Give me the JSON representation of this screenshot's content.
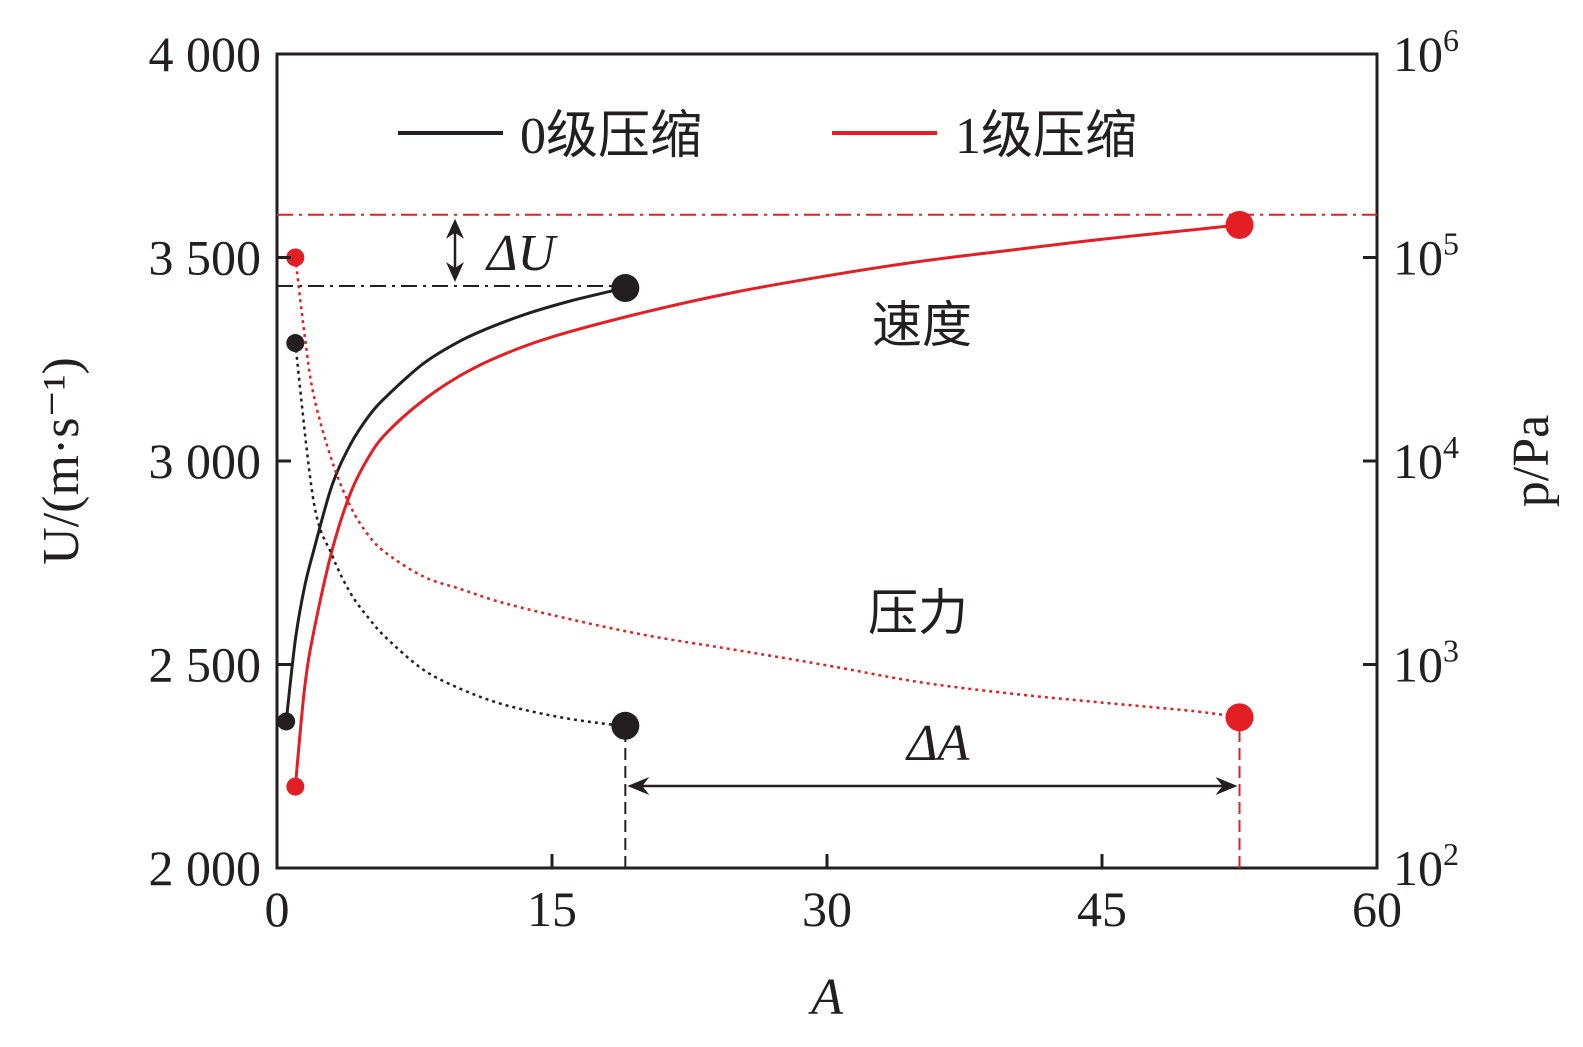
{
  "chart_data": {
    "type": "line",
    "xlabel": "A",
    "ylabel_left": "U/(m·s⁻¹)",
    "ylabel_right": "p/Pa",
    "xlim": [
      0,
      60
    ],
    "ylim_left": [
      2000,
      4000
    ],
    "ylim_right_log10": [
      2,
      6
    ],
    "right_axis_scale": "log",
    "x_ticks": [
      "0",
      "15",
      "30",
      "45",
      "60"
    ],
    "x_tick_values": [
      0,
      15,
      30,
      45,
      60
    ],
    "y_left_ticks": [
      "2 000",
      "2 500",
      "3 000",
      "3 500",
      "4 000"
    ],
    "y_left_tick_values": [
      2000,
      2500,
      3000,
      3500,
      4000
    ],
    "y_right_ticks": [
      {
        "base": "10",
        "exp": "2",
        "log": 2
      },
      {
        "base": "10",
        "exp": "3",
        "log": 3
      },
      {
        "base": "10",
        "exp": "4",
        "log": 4
      },
      {
        "base": "10",
        "exp": "5",
        "log": 5
      },
      {
        "base": "10",
        "exp": "6",
        "log": 6
      }
    ],
    "legend": {
      "placement": "top",
      "entries": [
        {
          "label": "0级压缩",
          "color": "#231f20"
        },
        {
          "label": "1级压缩",
          "color": "#e31e24"
        }
      ]
    },
    "series": [
      {
        "name": "0级压缩",
        "quantity": "速度",
        "axis": "left",
        "color": "#231f20",
        "style": "solid",
        "x": [
          0.5,
          1,
          1.5,
          2,
          3,
          4,
          5,
          6,
          8,
          10,
          12,
          14,
          16,
          18,
          19
        ],
        "y": [
          2360,
          2560,
          2690,
          2780,
          2940,
          3040,
          3110,
          3160,
          3240,
          3295,
          3335,
          3367,
          3393,
          3415,
          3425
        ],
        "endpoints": [
          {
            "x": 0.5,
            "y": 2360
          },
          {
            "x": 19,
            "y": 3425
          }
        ]
      },
      {
        "name": "1级压缩",
        "quantity": "速度",
        "axis": "left",
        "color": "#e31e24",
        "style": "solid",
        "x": [
          1,
          1.5,
          2,
          3,
          4,
          5,
          6,
          8,
          10,
          12,
          15,
          20,
          25,
          30,
          35,
          40,
          45,
          50,
          52.5
        ],
        "y": [
          2200,
          2440,
          2580,
          2780,
          2920,
          3010,
          3070,
          3150,
          3210,
          3255,
          3305,
          3365,
          3415,
          3455,
          3490,
          3518,
          3545,
          3568,
          3580
        ],
        "endpoints": [
          {
            "x": 1,
            "y": 2200
          },
          {
            "x": 52.5,
            "y": 3580
          }
        ]
      },
      {
        "name": "0级压缩",
        "quantity": "压力",
        "axis": "right",
        "color": "#231f20",
        "style": "dotted",
        "x": [
          1,
          2,
          3,
          4,
          5,
          6,
          8,
          10,
          12,
          14,
          16,
          18,
          19
        ],
        "y": [
          38000,
          6300,
          3450,
          2250,
          1690,
          1340,
          940,
          760,
          650,
          585,
          540,
          510,
          500
        ],
        "endpoints": [
          {
            "x": 1,
            "y": 38000
          },
          {
            "x": 19,
            "y": 500
          }
        ]
      },
      {
        "name": "1级压缩",
        "quantity": "压力",
        "axis": "right",
        "color": "#e31e24",
        "style": "dotted",
        "x": [
          1,
          1.5,
          2,
          3,
          4,
          5,
          6,
          8,
          10,
          12,
          15,
          20,
          25,
          30,
          35,
          40,
          45,
          50,
          52.5
        ],
        "y": [
          100000,
          42000,
          21000,
          10000,
          6000,
          4300,
          3500,
          2700,
          2350,
          2050,
          1750,
          1400,
          1180,
          990,
          820,
          720,
          650,
          590,
          550
        ],
        "endpoints": [
          {
            "x": 1,
            "y": 100000
          },
          {
            "x": 52.5,
            "y": 550
          }
        ]
      }
    ],
    "annotations": [
      {
        "text": "速度"
      },
      {
        "text": "压力"
      },
      {
        "text": "ΔU",
        "between_y_left": [
          3430,
          3605
        ]
      },
      {
        "text": "ΔA",
        "between_x": [
          19,
          52.5
        ]
      }
    ],
    "reference_lines": [
      {
        "kind": "horizontal",
        "axis": "left",
        "y": 3605,
        "color": "#e31e24",
        "style": "dashdot"
      },
      {
        "kind": "horizontal",
        "axis": "left",
        "y": 3430,
        "color": "#231f20",
        "style": "dashdot"
      },
      {
        "kind": "vertical",
        "x": 19,
        "color": "#231f20",
        "style": "dashed"
      },
      {
        "kind": "vertical",
        "x": 52.5,
        "color": "#e31e24",
        "style": "dashed"
      }
    ],
    "grid": false
  }
}
